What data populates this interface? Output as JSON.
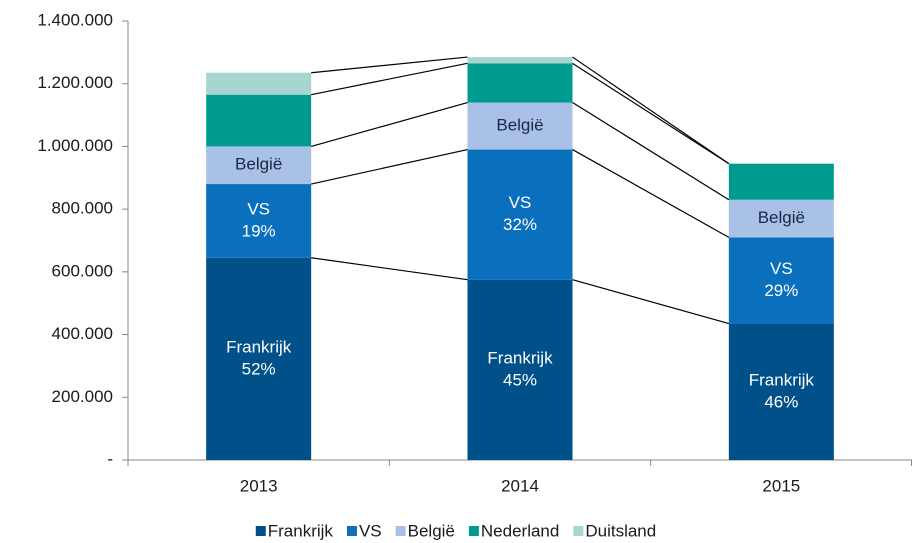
{
  "chart_data": {
    "type": "stacked_bar",
    "categories": [
      "2013",
      "2014",
      "2015"
    ],
    "series": [
      {
        "name": "Frankrijk",
        "color": "#00508a",
        "values": [
          645000,
          575000,
          435000
        ],
        "labels": [
          "52%",
          "45%",
          "46%"
        ],
        "inside_labels": true,
        "label_color": "#ffffff"
      },
      {
        "name": "VS",
        "color": "#0a6fbd",
        "values": [
          235000,
          415000,
          275000
        ],
        "labels": [
          "19%",
          "32%",
          "29%"
        ],
        "inside_labels": true,
        "label_color": "#ffffff"
      },
      {
        "name": "België",
        "color": "#a9c1e6",
        "values": [
          120000,
          150000,
          120000
        ],
        "inside_labels": true,
        "label_color": "#1a2a44"
      },
      {
        "name": "Nederland",
        "color": "#009b8f",
        "values": [
          165000,
          125000,
          115000
        ]
      },
      {
        "name": "Duitsland",
        "color": "#a7d6d1",
        "values": [
          70000,
          20000,
          0
        ]
      }
    ],
    "ylim": [
      0,
      1400000
    ],
    "yticks": [
      {
        "value": 0,
        "label": "-"
      },
      {
        "value": 200000,
        "label": "200.000"
      },
      {
        "value": 400000,
        "label": "400.000"
      },
      {
        "value": 600000,
        "label": "600.000"
      },
      {
        "value": 800000,
        "label": "800.000"
      },
      {
        "value": 1000000,
        "label": "1.000.000"
      },
      {
        "value": 1200000,
        "label": "1.200.000"
      },
      {
        "value": 1400000,
        "label": "1.400.000"
      }
    ],
    "connectors": true,
    "legend": "bottom"
  }
}
